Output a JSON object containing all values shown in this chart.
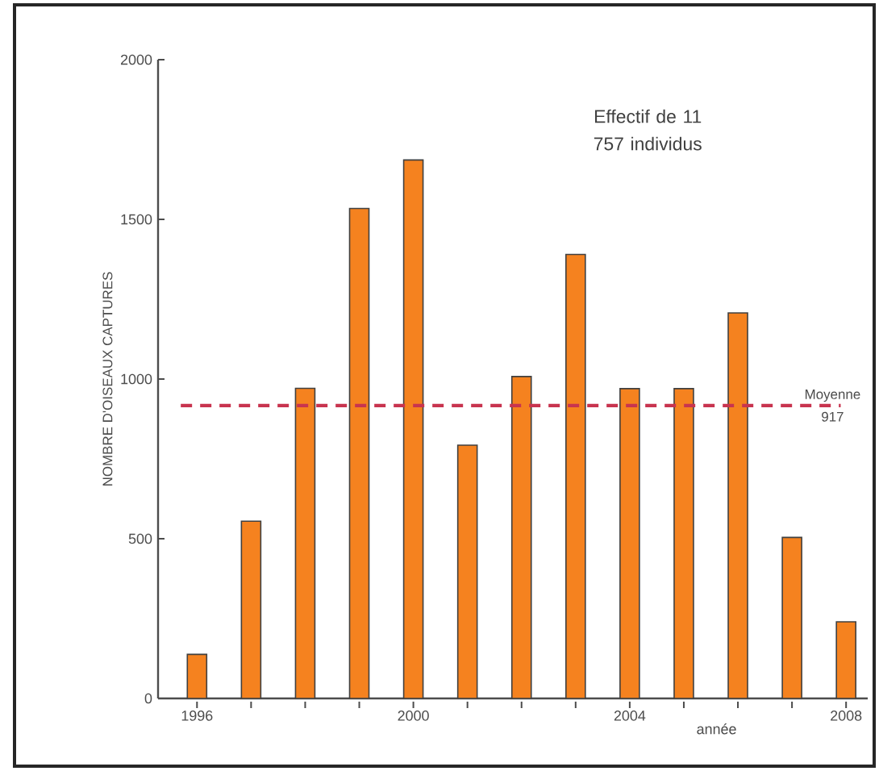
{
  "chart_data": {
    "type": "bar",
    "categories": [
      "1996",
      null,
      null,
      null,
      "2000",
      null,
      null,
      null,
      "2004",
      null,
      null,
      null,
      "2008"
    ],
    "values": [
      138,
      555,
      971,
      1534,
      1686,
      793,
      1008,
      1390,
      970,
      970,
      1207,
      504,
      240
    ],
    "color": "#f5821f",
    "xlabel": "année",
    "ylabel": "NOMBRE D'OISEAUX CAPTURES",
    "ylim": [
      0,
      2000
    ],
    "yticks": [
      0,
      500,
      1000,
      1500,
      2000
    ],
    "ref_lines": [
      {
        "axis": "y",
        "value": 917,
        "label": "Moyenne 917",
        "color": "#c8344f",
        "line_style": "dashed"
      }
    ],
    "annotations": [
      "Effectif de 11 757 individus"
    ]
  }
}
